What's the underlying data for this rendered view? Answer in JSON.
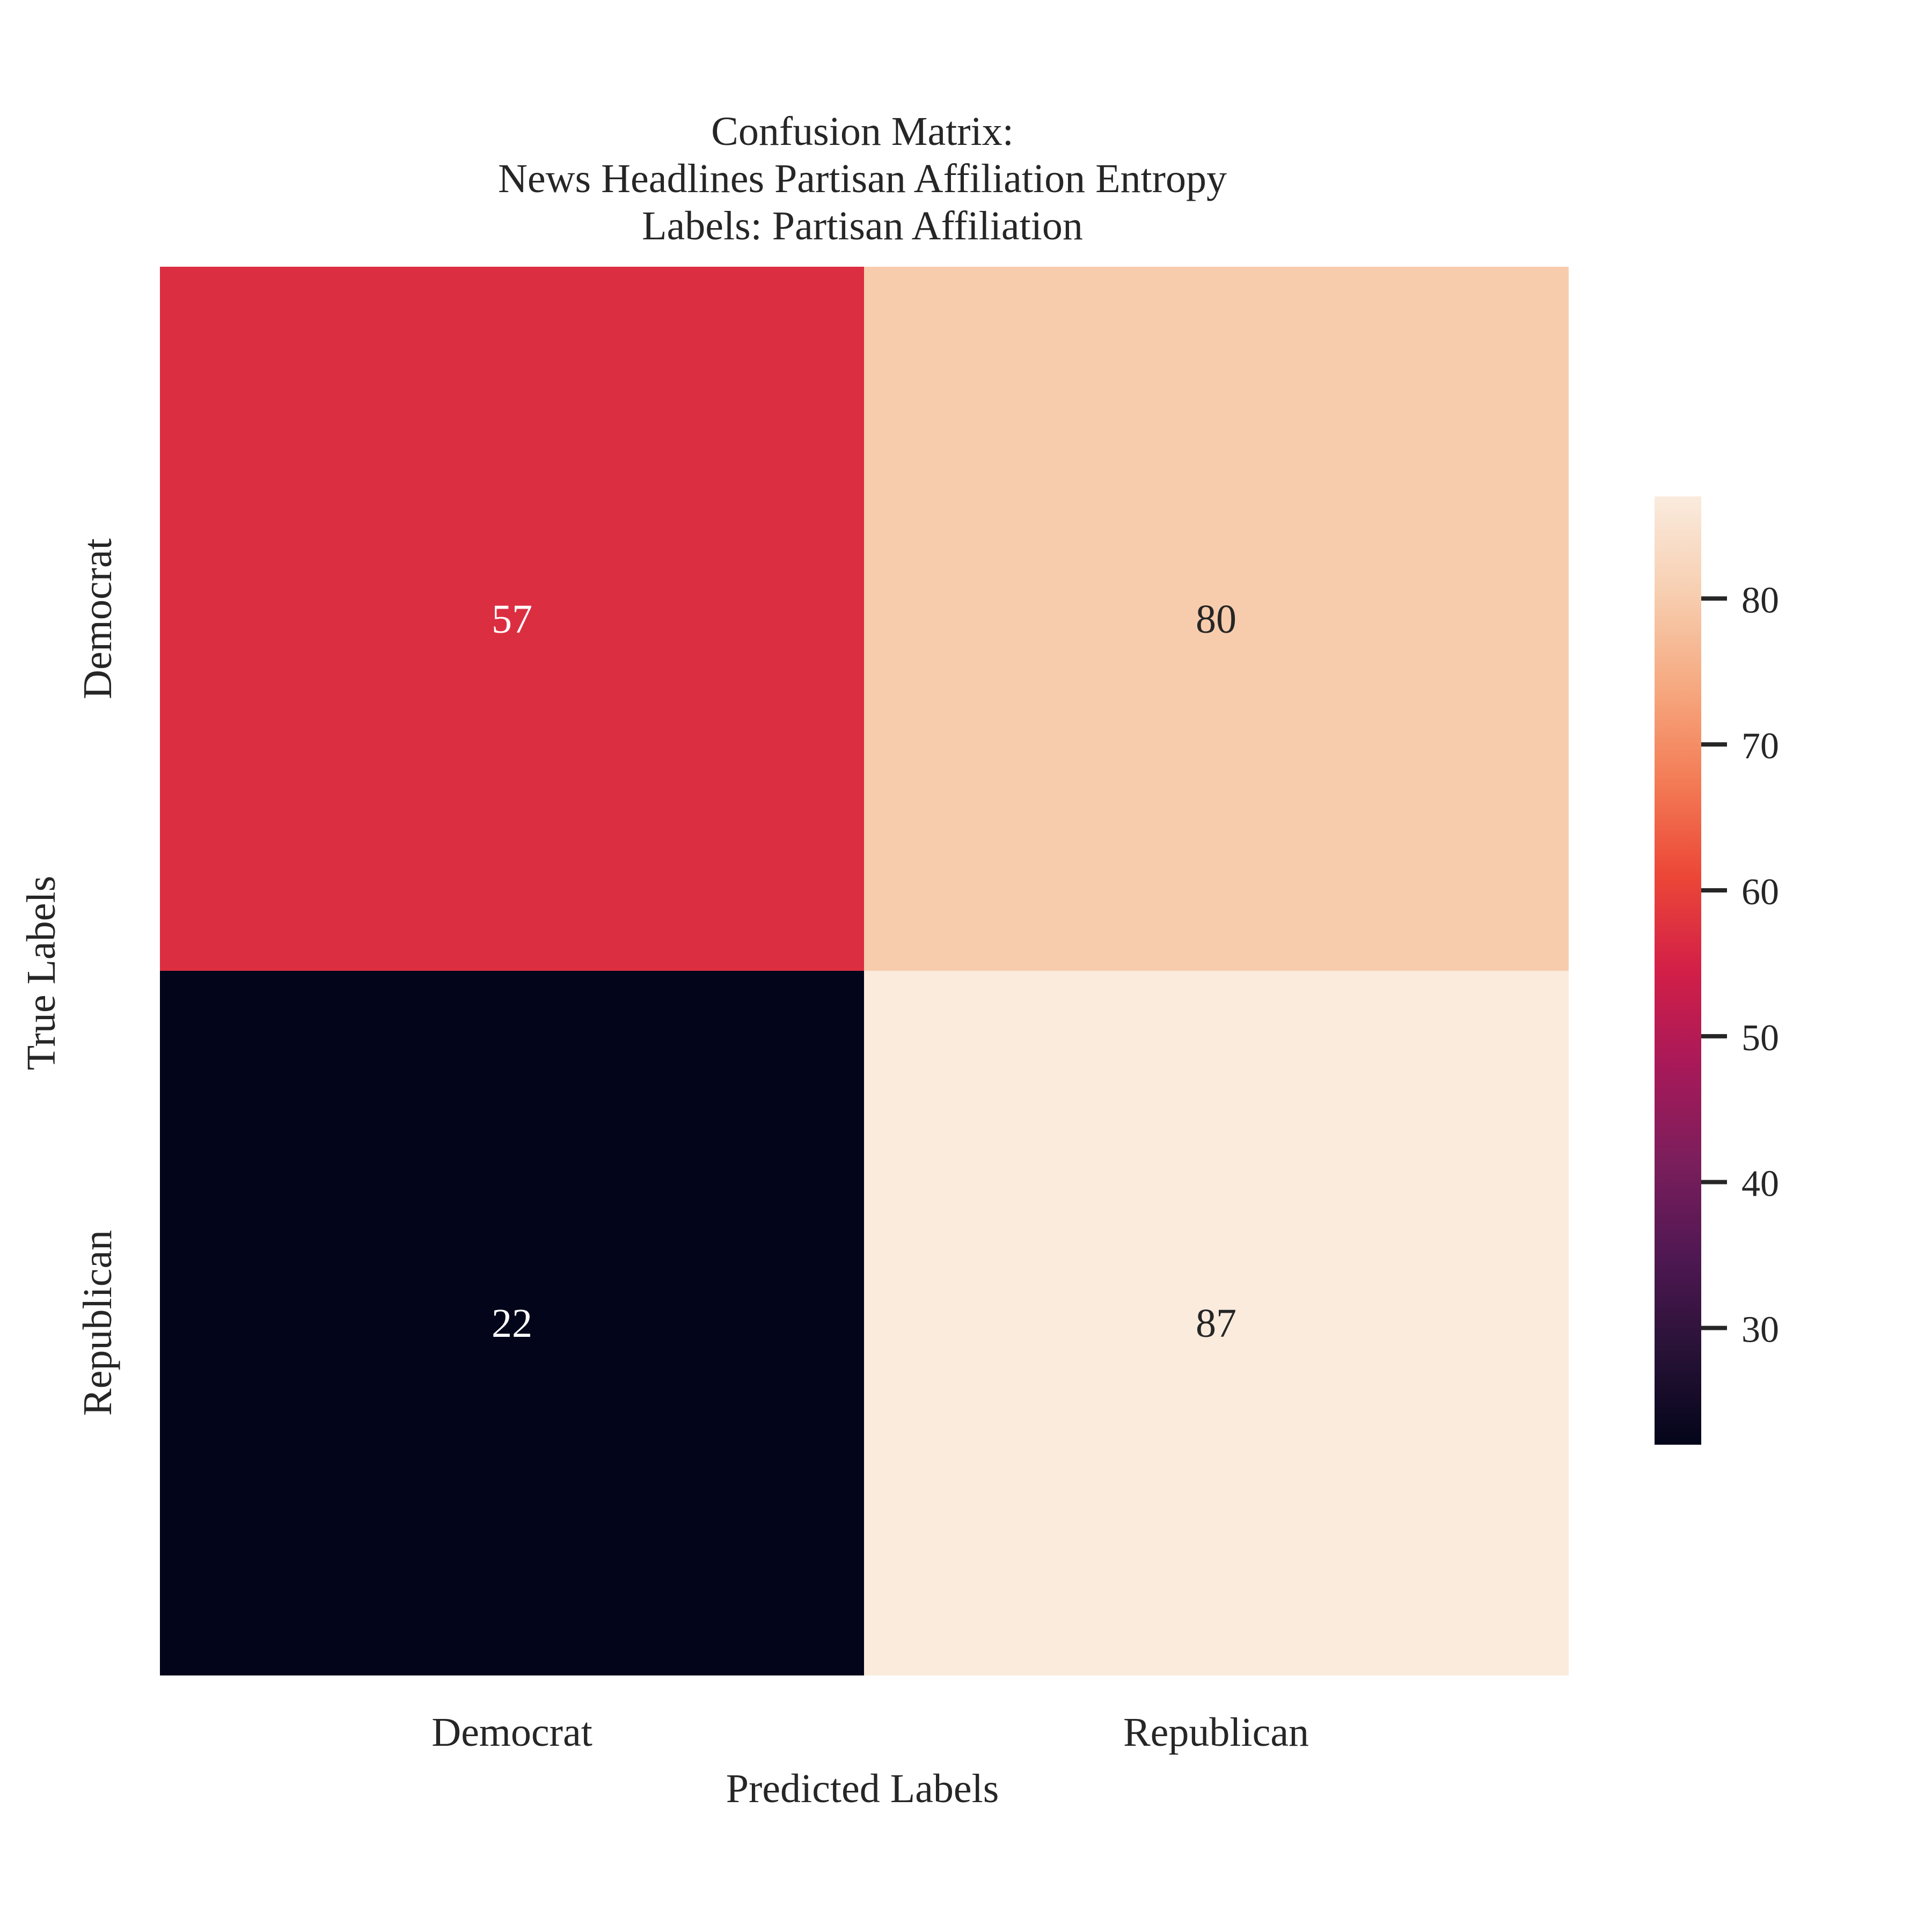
{
  "chart_data": {
    "type": "heatmap",
    "title_lines": [
      "Confusion Matrix:",
      "News Headlines Partisan Affiliation Entropy",
      "Labels: Partisan Affiliation"
    ],
    "xlabel": "Predicted Labels",
    "ylabel": "True Labels",
    "x_categories": [
      "Democrat",
      "Republican"
    ],
    "y_categories": [
      "Democrat",
      "Republican"
    ],
    "values": [
      [
        57,
        80
      ],
      [
        22,
        87
      ]
    ],
    "colorbar": {
      "colormap": "rocket",
      "vmin": 22,
      "vmax": 87,
      "ticks": [
        30,
        40,
        50,
        60,
        70,
        80
      ]
    },
    "annotation_colors": {
      "dark_cell": "#ffffff",
      "light_cell": "#262626"
    }
  }
}
